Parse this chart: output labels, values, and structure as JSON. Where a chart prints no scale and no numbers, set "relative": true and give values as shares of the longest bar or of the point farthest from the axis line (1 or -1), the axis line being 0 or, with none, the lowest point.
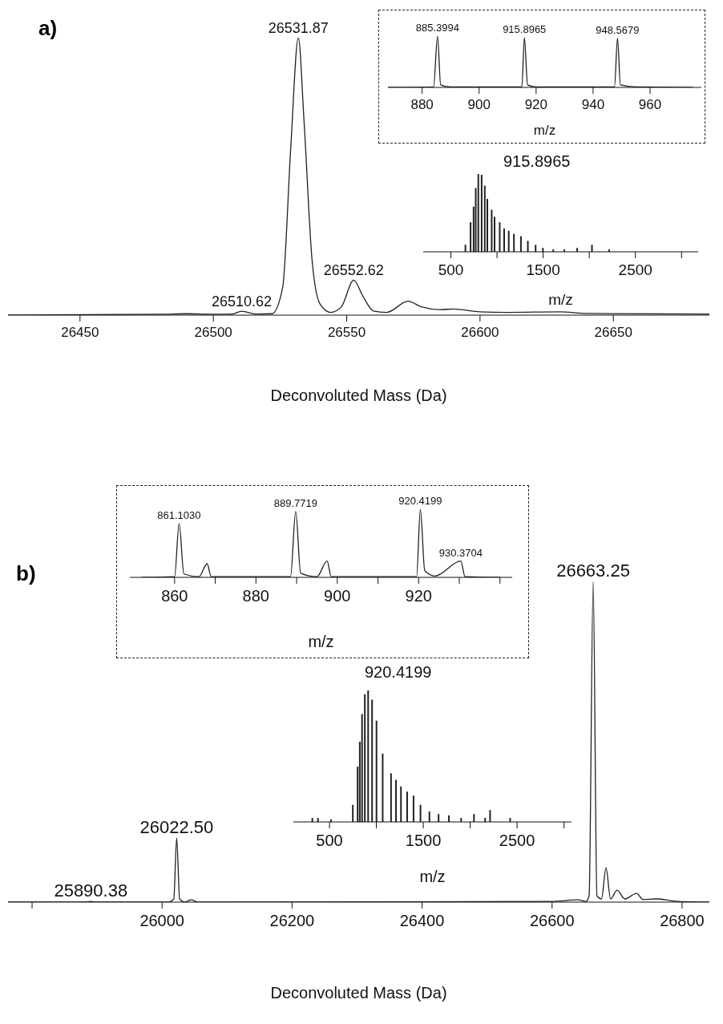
{
  "chart_data": [
    {
      "type": "line",
      "title": "a)",
      "xlabel": "Deconvoluted Mass (Da)",
      "relative": true,
      "xlim": [
        26423,
        26686
      ],
      "xticks": [
        26450,
        26500,
        26550,
        26600,
        26650
      ],
      "x": [
        26423,
        26480,
        26490,
        26500,
        26507,
        26510.62,
        26516,
        26522,
        26526,
        26529,
        26531.87,
        26534,
        26537,
        26540,
        26544,
        26548,
        26552.62,
        26556,
        26560,
        26565,
        26573,
        26578,
        26585,
        26590,
        26600,
        26610,
        26630,
        26640,
        26686
      ],
      "series": [
        {
          "color": "#222222",
          "values": [
            0,
            0.003,
            0.005,
            0.003,
            0.004,
            0.014,
            0.004,
            0.005,
            0.1,
            0.6,
            1,
            0.7,
            0.2,
            0.04,
            0.01,
            0.03,
            0.126,
            0.07,
            0.015,
            0.01,
            0.05,
            0.03,
            0.02,
            0.022,
            0.012,
            0.01,
            0.012,
            0.006,
            0.004
          ]
        }
      ],
      "annotations": [
        {
          "text": "26531.87",
          "x": 26531.87,
          "y": 1
        },
        {
          "text": "26510.62",
          "x": 26510.62,
          "y": 0.014
        },
        {
          "text": "26552.62",
          "x": 26552.62,
          "y": 0.126
        }
      ]
    },
    {
      "type": "line",
      "xlabel": "m/z",
      "relative": true,
      "xlim": [
        868,
        978
      ],
      "xticks": [
        880,
        900,
        920,
        940,
        960
      ],
      "x": [
        868,
        884,
        885.3994,
        886.5,
        890,
        915,
        915.8965,
        917,
        920,
        947.5,
        948.5679,
        949.6,
        955,
        975
      ],
      "series": [
        {
          "color": "#222222",
          "values": [
            0,
            0.01,
            1,
            0.05,
            0.01,
            0.01,
            0.97,
            0.05,
            0.01,
            0.01,
            0.96,
            0.05,
            0.01,
            0
          ]
        }
      ],
      "annotations": [
        {
          "text": "885.3994",
          "x": 885.3994,
          "y": 1
        },
        {
          "text": "915.8965",
          "x": 915.8965,
          "y": 0.97
        },
        {
          "text": "948.5679",
          "x": 948.5679,
          "y": 0.96
        }
      ]
    },
    {
      "type": "bar",
      "xlabel": "m/z",
      "relative": true,
      "xlim": [
        200,
        3180
      ],
      "xticks": [
        500,
        {
          "value": 1000,
          "label": null
        },
        1500,
        {
          "value": 2000,
          "label": null
        },
        2500,
        {
          "value": 3000,
          "label": null
        }
      ],
      "x": [
        660,
        716,
        749,
        772,
        800,
        836,
        870,
        898,
        945,
        976,
        1032,
        1080,
        1130,
        1186,
        1262,
        1337,
        1421,
        1500,
        1612,
        1732,
        1872,
        2032,
        2219
      ],
      "series": [
        {
          "color": "#222222",
          "values": [
            0.09,
            0.38,
            0.58,
            0.82,
            1,
            0.99,
            0.85,
            0.68,
            0.54,
            0.45,
            0.38,
            0.3,
            0.27,
            0.23,
            0.2,
            0.14,
            0.09,
            0.05,
            0.03,
            0.03,
            0.05,
            0.09,
            0.03
          ]
        }
      ],
      "annotations": [
        "915.8965"
      ]
    },
    {
      "type": "line",
      "title": "b)",
      "xlabel": "Deconvoluted Mass (Da)",
      "relative": true,
      "xlim": [
        25763,
        26842
      ],
      "xticks": [
        {
          "value": 25800,
          "label": null
        },
        26000,
        26200,
        26400,
        26600,
        26800
      ],
      "x": [
        25763,
        25880,
        25890.38,
        25900,
        26010,
        26018,
        26022.5,
        26027,
        26035,
        26045,
        26055,
        26600,
        26640,
        26652,
        26657,
        26663.25,
        26669,
        26676,
        26683,
        26690,
        26700,
        26712,
        26730,
        26740,
        26760,
        26790,
        26842
      ],
      "series": [
        {
          "color": "#222222",
          "values": [
            0,
            0,
            0.002,
            0,
            0,
            0.01,
            0.2,
            0.01,
            0,
            0.007,
            0,
            0.002,
            0.007,
            0.002,
            0.02,
            1,
            0.02,
            0.01,
            0.107,
            0.01,
            0.037,
            0.01,
            0.027,
            0.008,
            0.01,
            0.003,
            0
          ]
        }
      ],
      "annotations": [
        {
          "text": "26663.25",
          "x": 26663.25,
          "y": 1
        },
        {
          "text": "26022.50",
          "x": 26022.5,
          "y": 0.2
        },
        {
          "text": "25890.38",
          "x": 25890.38,
          "y": 0.002
        }
      ]
    },
    {
      "type": "line",
      "xlabel": "m/z",
      "relative": true,
      "xlim": [
        849,
        943
      ],
      "xticks": [
        860,
        {
          "value": 870,
          "label": null
        },
        880,
        {
          "value": 890,
          "label": null
        },
        900,
        {
          "value": 910,
          "label": null
        },
        920,
        {
          "value": 930,
          "label": null
        },
        {
          "value": 940,
          "label": null
        }
      ],
      "x": [
        852,
        860,
        861.103,
        862.3,
        866,
        868,
        869,
        888.5,
        889.7719,
        891,
        895,
        897.5,
        898.5,
        919.5,
        920.4199,
        921.5,
        924,
        930.3704,
        931.4,
        940
      ],
      "series": [
        {
          "color": "#222222",
          "values": [
            0,
            0.01,
            0.79,
            0.05,
            0.01,
            0.2,
            0.01,
            0.01,
            0.97,
            0.06,
            0.01,
            0.24,
            0.01,
            0.01,
            1,
            0.1,
            0.02,
            0.24,
            0.01,
            0
          ]
        }
      ],
      "annotations": [
        {
          "text": "861.1030",
          "x": 861.103,
          "y": 0.79
        },
        {
          "text": "889.7719",
          "x": 889.7719,
          "y": 0.97
        },
        {
          "text": "920.4199",
          "x": 920.4199,
          "y": 1
        },
        {
          "text": "930.3704",
          "x": 930.3704,
          "y": 0.24
        }
      ]
    },
    {
      "type": "bar",
      "xlabel": "m/z",
      "relative": true,
      "xlim": [
        115,
        3080
      ],
      "xticks": [
        500,
        {
          "value": 1000,
          "label": null
        },
        1500,
        {
          "value": 2000,
          "label": null
        },
        2500,
        {
          "value": 3000,
          "label": null
        }
      ],
      "x": [
        320,
        380,
        520,
        752,
        803,
        826,
        850,
        880,
        915,
        957,
        1004,
        1070,
        1159,
        1212,
        1265,
        1331,
        1399,
        1473,
        1568,
        1666,
        1776,
        1906,
        2043,
        2162,
        2215,
        2429
      ],
      "series": [
        {
          "color": "#222222",
          "values": [
            0.03,
            0.03,
            0.02,
            0.13,
            0.42,
            0.61,
            0.82,
            0.97,
            1,
            0.93,
            0.77,
            0.52,
            0.37,
            0.32,
            0.27,
            0.23,
            0.2,
            0.13,
            0.08,
            0.06,
            0.05,
            0.03,
            0.06,
            0.03,
            0.09,
            0.03
          ]
        }
      ],
      "annotations": [
        "920.4199"
      ]
    }
  ]
}
